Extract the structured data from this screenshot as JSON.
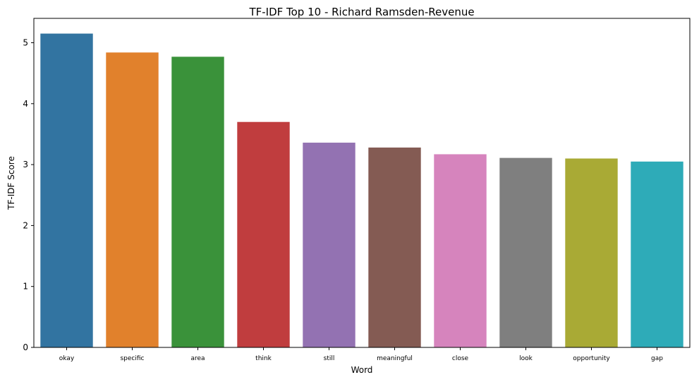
{
  "chart_data": {
    "type": "bar",
    "title": "TF-IDF Top 10 - Richard Ramsden-Revenue",
    "xlabel": "Word",
    "ylabel": "TF-IDF Score",
    "categories": [
      "okay",
      "specific",
      "area",
      "think",
      "still",
      "meaningful",
      "close",
      "look",
      "opportunity",
      "gap"
    ],
    "values": [
      5.15,
      4.84,
      4.77,
      3.7,
      3.36,
      3.28,
      3.17,
      3.11,
      3.1,
      3.05
    ],
    "colors": [
      "#3274a1",
      "#e1812c",
      "#3a923a",
      "#c03d3e",
      "#9372b2",
      "#845b53",
      "#d684bd",
      "#7f7f7f",
      "#a9aa35",
      "#2eabb8"
    ],
    "ylim": [
      0,
      5.4
    ],
    "yticks": [
      0,
      1,
      2,
      3,
      4,
      5
    ],
    "grid": false,
    "legend": "none"
  }
}
